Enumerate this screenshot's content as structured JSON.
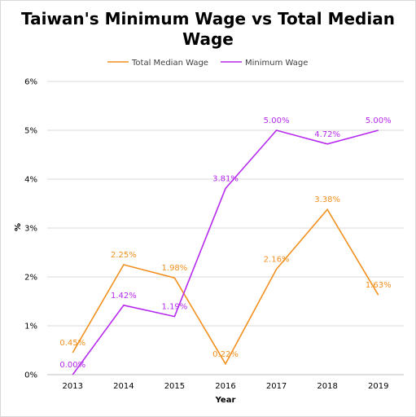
{
  "chart_data": {
    "type": "line",
    "title_lines": [
      "Taiwan's Minimum Wage vs Total Median",
      "Wage"
    ],
    "xlabel": "Year",
    "ylabel": "%",
    "categories": [
      "2013",
      "2014",
      "2015",
      "2016",
      "2017",
      "2018",
      "2019"
    ],
    "ylim": [
      0,
      6
    ],
    "yticks": [
      0,
      1,
      2,
      3,
      4,
      5,
      6
    ],
    "ytick_labels": [
      "0%",
      "1%",
      "2%",
      "3%",
      "4%",
      "5%",
      "6%"
    ],
    "grid": true,
    "legend_position": "top",
    "series": [
      {
        "name": "Total Median Wage",
        "color": "#F2901E",
        "values": [
          0.45,
          2.25,
          1.98,
          0.22,
          2.16,
          3.38,
          1.63
        ],
        "labels": [
          "0.45%",
          "2.25%",
          "1.98%",
          "0.22%",
          "2.16%",
          "3.38%",
          "1.63%"
        ]
      },
      {
        "name": "Minimum Wage",
        "color": "#B62AEF",
        "values": [
          0.0,
          1.42,
          1.19,
          3.81,
          5.0,
          4.72,
          5.0
        ],
        "labels": [
          "0.00%",
          "1.42%",
          "1.19%",
          "3.81%",
          "5.00%",
          "4.72%",
          "5.00%"
        ]
      }
    ]
  }
}
